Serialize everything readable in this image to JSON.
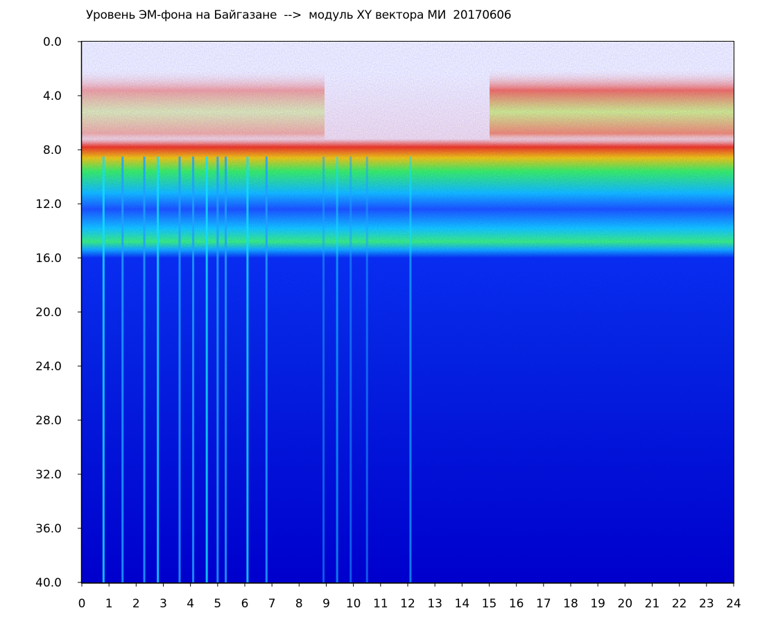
{
  "chart_data": {
    "type": "heatmap",
    "title": "Уровень ЭМ-фона на Байгазане  -->  модуль XY вектора МИ  20170606",
    "xlabel": "",
    "ylabel": "",
    "xlim": [
      0,
      24
    ],
    "ylim": [
      0,
      40
    ],
    "y_inverted": true,
    "x_ticks": [
      "0",
      "1",
      "2",
      "3",
      "4",
      "5",
      "6",
      "7",
      "8",
      "9",
      "10",
      "11",
      "12",
      "13",
      "14",
      "15",
      "16",
      "17",
      "18",
      "19",
      "20",
      "21",
      "22",
      "23",
      "24"
    ],
    "y_ticks": [
      "0.0",
      "4.0",
      "8.0",
      "12.0",
      "16.0",
      "20.0",
      "24.0",
      "28.0",
      "32.0",
      "36.0",
      "40.0"
    ],
    "grid": false,
    "legend": "none",
    "colormap": [
      "#0000c8",
      "#0a3cff",
      "#00b4ff",
      "#00ffd2",
      "#3cff28",
      "#ffff00",
      "#ff3c00"
    ],
    "bands": [
      {
        "from": 3.0,
        "to": 8.0,
        "level": "sparse red"
      },
      {
        "from": 8.0,
        "to": 9.0,
        "level": "red-yellow"
      },
      {
        "from": 9.0,
        "to": 15.0,
        "level": "green-cyan"
      },
      {
        "from": 15.0,
        "to": 40.0,
        "level": "blue"
      }
    ],
    "vertical_streaks_hours": [
      0.8,
      1.5,
      2.3,
      2.8,
      3.6,
      4.1,
      4.6,
      5.0,
      5.3,
      6.1,
      6.8,
      8.9,
      9.4,
      9.9,
      10.5,
      12.1
    ]
  }
}
